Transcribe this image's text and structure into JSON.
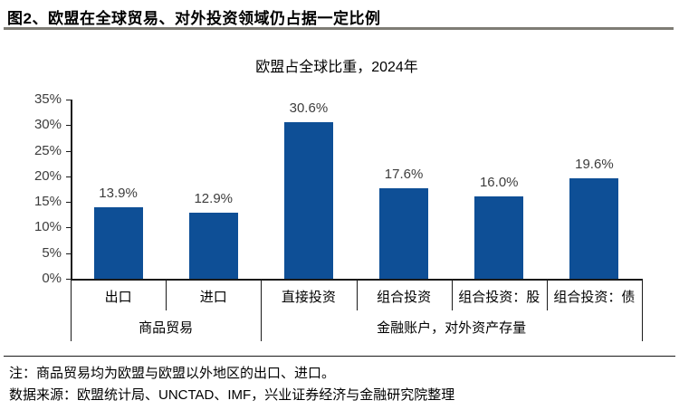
{
  "header": {
    "title": "图2、欧盟在全球贸易、对外投资领域仍占据一定比例"
  },
  "colors": {
    "bar": "#0E4F96",
    "axis": "#1a1a1a",
    "value_label": "#3d3d3d",
    "title_rule": "#7e7c75",
    "note_rule": "#1a1a1a"
  },
  "chart_data": {
    "type": "bar",
    "title": "欧盟占全球比重，2024年",
    "categories": [
      "出口",
      "进口",
      "直接投资",
      "组合投资",
      "组合投资：股",
      "组合投资：债"
    ],
    "values": [
      13.9,
      12.9,
      30.6,
      17.6,
      16.0,
      19.6
    ],
    "data_labels": [
      "13.9%",
      "12.9%",
      "30.6%",
      "17.6%",
      "16.0%",
      "19.6%"
    ],
    "groups": [
      {
        "label": "商品贸易",
        "start": 0,
        "end": 2
      },
      {
        "label": "金融账户，对外资产存量",
        "start": 2,
        "end": 6
      }
    ],
    "xlabel": "",
    "ylabel": "",
    "ylim": [
      0,
      35
    ],
    "ytick_step": 5,
    "ytick_labels": [
      "0%",
      "5%",
      "10%",
      "15%",
      "20%",
      "25%",
      "30%",
      "35%"
    ],
    "grid": false,
    "legend": null
  },
  "notes": {
    "line1": "注：商品贸易均为欧盟与欧盟以外地区的出口、进口。",
    "line2": "数据来源：欧盟统计局、UNCTAD、IMF，兴业证券经济与金融研究院整理"
  }
}
